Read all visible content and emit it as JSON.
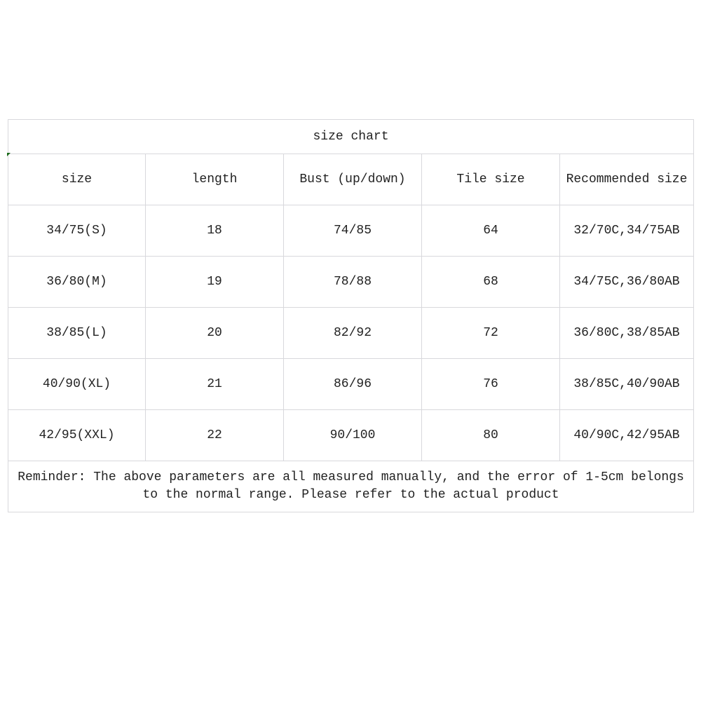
{
  "title": "size chart",
  "headers": [
    "size",
    "length",
    "Bust (up/down)",
    "Tile size",
    "Recommended size"
  ],
  "rows": [
    [
      "34/75(S)",
      "18",
      "74/85",
      "64",
      "32/70C,34/75AB"
    ],
    [
      "36/80(M)",
      "19",
      "78/88",
      "68",
      "34/75C,36/80AB"
    ],
    [
      "38/85(L)",
      "20",
      "82/92",
      "72",
      "36/80C,38/85AB"
    ],
    [
      "40/90(XL)",
      "21",
      "86/96",
      "76",
      "38/85C,40/90AB"
    ],
    [
      "42/95(XXL)",
      "22",
      "90/100",
      "80",
      "40/90C,42/95AB"
    ]
  ],
  "reminder_line1": "Reminder: The above parameters are all measured manually, and the error of 1-5cm belongs",
  "reminder_line2": "to the normal range. Please refer to the actual product"
}
